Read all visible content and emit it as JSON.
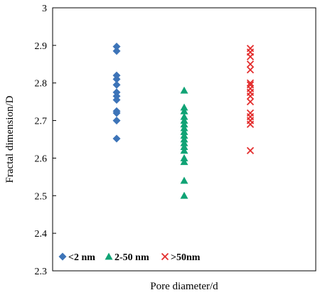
{
  "chart_data": {
    "type": "scatter",
    "title": "",
    "xlabel": "Pore diameter/d",
    "ylabel": "Fractal dimension/D",
    "ylim": [
      2.3,
      3.0
    ],
    "yticks": [
      "2.3",
      "2.4",
      "2.5",
      "2.6",
      "2.7",
      "2.8",
      "2.9",
      "3"
    ],
    "grid": false,
    "legend_position": "bottom-left",
    "series": [
      {
        "name": "<2 nm",
        "marker": "diamond",
        "color": "#3d74b8",
        "x": 1,
        "values": [
          2.897,
          2.885,
          2.82,
          2.81,
          2.795,
          2.775,
          2.765,
          2.755,
          2.725,
          2.72,
          2.7,
          2.652
        ]
      },
      {
        "name": "2-50 nm",
        "marker": "triangle",
        "color": "#10a375",
        "x": 2,
        "values": [
          2.78,
          2.735,
          2.725,
          2.71,
          2.7,
          2.69,
          2.68,
          2.67,
          2.66,
          2.65,
          2.64,
          2.63,
          2.62,
          2.6,
          2.59,
          2.54,
          2.5
        ]
      },
      {
        "name": ">50nm",
        "marker": "x",
        "color": "#e32d2d",
        "x": 3,
        "values": [
          2.892,
          2.882,
          2.87,
          2.85,
          2.835,
          2.8,
          2.795,
          2.785,
          2.775,
          2.765,
          2.75,
          2.72,
          2.71,
          2.7,
          2.69,
          2.62
        ]
      }
    ]
  }
}
